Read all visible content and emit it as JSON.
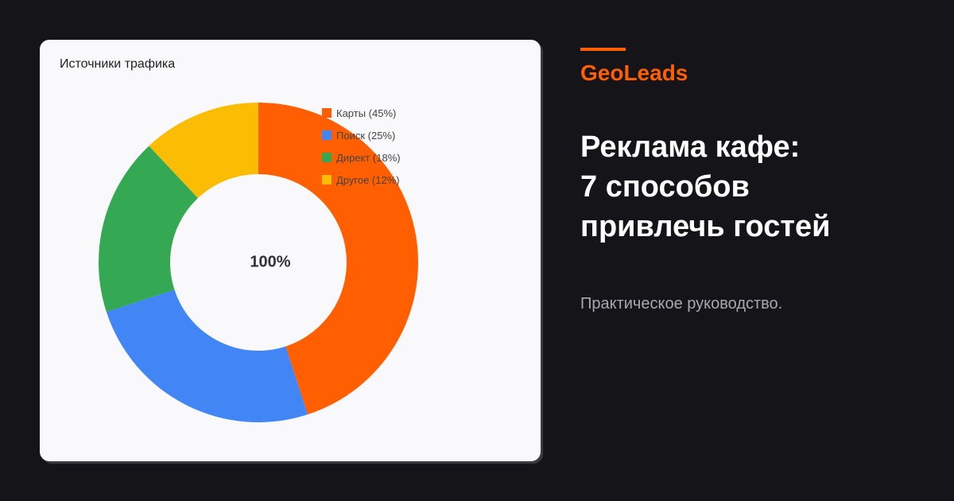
{
  "brand": "GeoLeads",
  "headline": {
    "line1": "Реклама кафе:",
    "line2": "7 способов",
    "line3": "привлечь гостей"
  },
  "subtitle": "Практическое руководство.",
  "colors": {
    "background": "#141419",
    "accent": "#ff5f00",
    "card": "#f9f9fb"
  },
  "chart_data": {
    "type": "pie",
    "title": "Источники трафика",
    "center_label": "100%",
    "legend_position": "top-right",
    "slices": [
      {
        "label": "Карты (45%)",
        "value": 45,
        "color": "#ff5f00"
      },
      {
        "label": "Поиск (25%)",
        "value": 25,
        "color": "#4285f4"
      },
      {
        "label": "Директ (18%)",
        "value": 18,
        "color": "#34a853"
      },
      {
        "label": "Другое (12%)",
        "value": 12,
        "color": "#fbbc04"
      }
    ]
  }
}
